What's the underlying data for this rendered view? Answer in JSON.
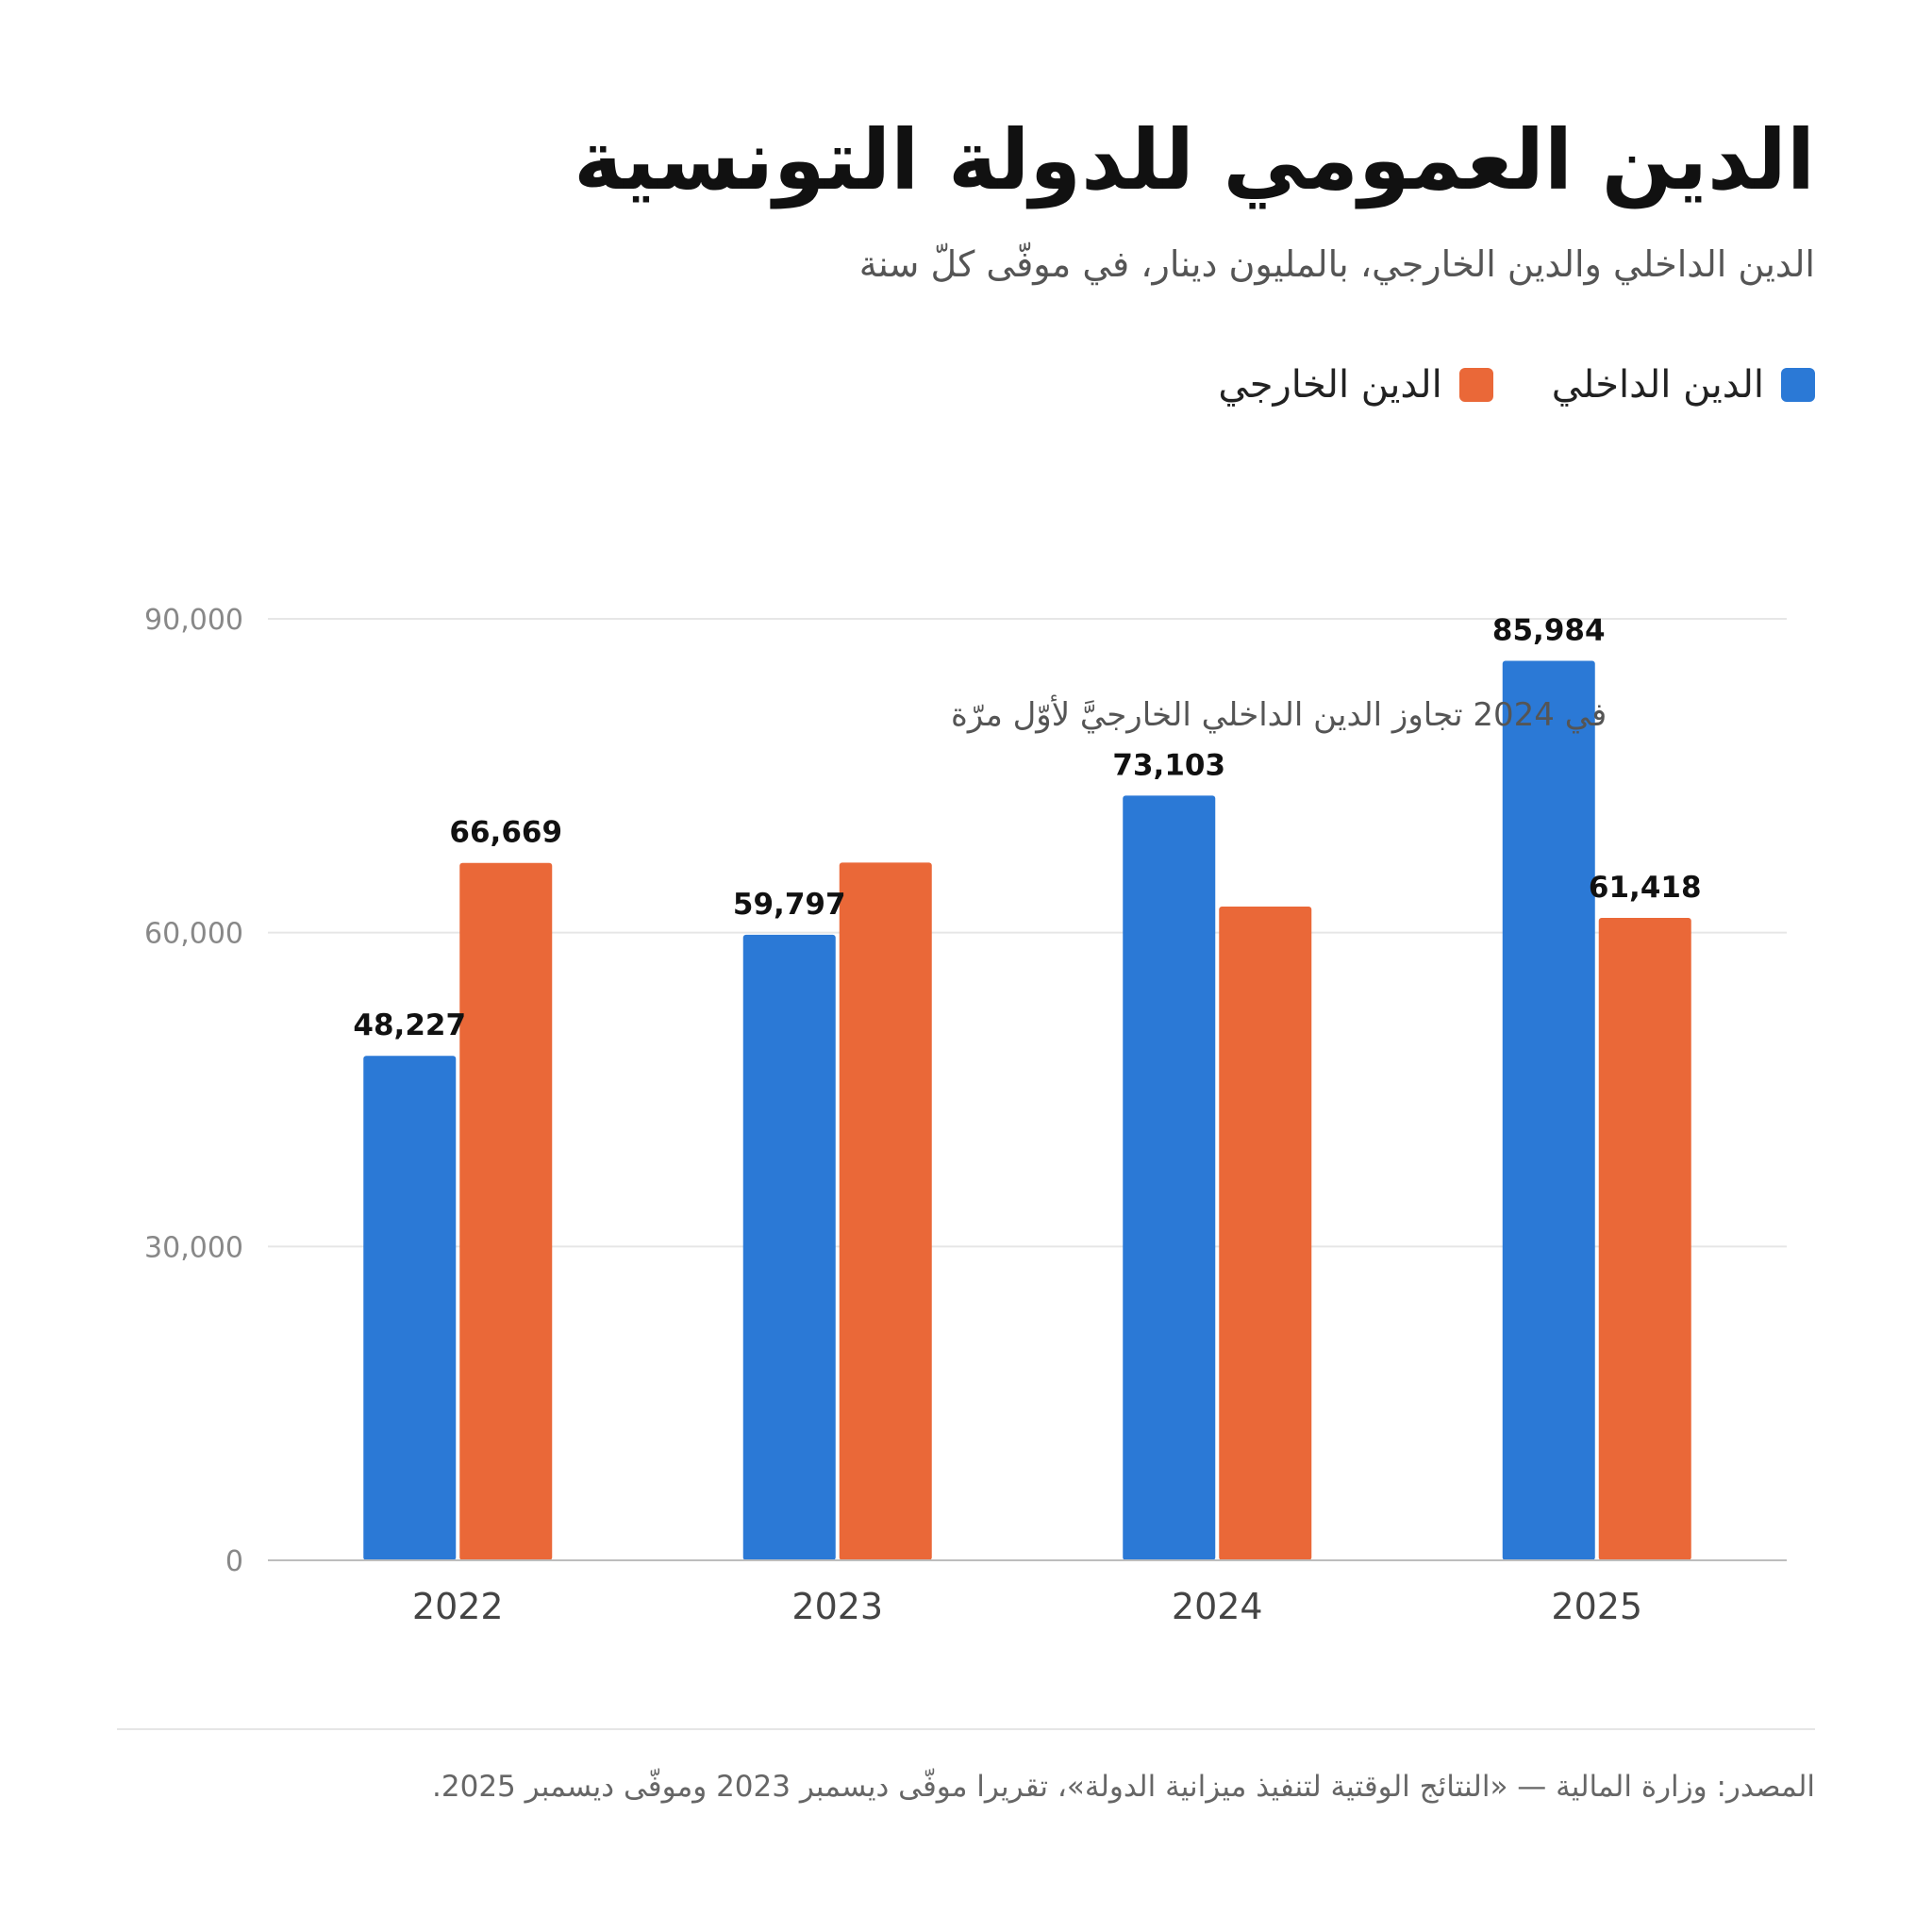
{
  "chart_data": {
    "type": "bar",
    "title": "الدين العمومي للدولة التونسية",
    "subtitle": "الدين الداخلي والدين الخارجي، بالمليون دينار، في موفّى كلّ سنة",
    "categories": [
      "2022",
      "2023",
      "2024",
      "2025"
    ],
    "series": [
      {
        "name": "الدين الداخلي",
        "color": "#2b79d6",
        "values": [
          48227,
          59797,
          73103,
          85984
        ],
        "labels": [
          "48,227",
          "59,797",
          "73,103",
          "85,984"
        ]
      },
      {
        "name": "الدين الخارجي",
        "color": "#ea6838",
        "values": [
          66669,
          66700,
          62500,
          61418
        ],
        "labels": [
          "66,669",
          "",
          "",
          "61,418"
        ]
      }
    ],
    "ylim": [
      0,
      90000
    ],
    "yticks": [
      0,
      30000,
      60000,
      90000
    ],
    "ytick_labels": [
      "0",
      "30,000",
      "60,000",
      "90,000"
    ],
    "grid": true,
    "legend_position": "top-right",
    "annotation": "في 2024 تجاوز الدين الداخلي الخارجيَّ لأوّل مرّة",
    "xlabel": "",
    "ylabel": ""
  },
  "source": "المصدر: وزارة المالية — «النتائج الوقتية لتنفيذ ميزانية الدولة»، تقريرا موفّى ديسمبر 2023 وموفّى ديسمبر 2025."
}
